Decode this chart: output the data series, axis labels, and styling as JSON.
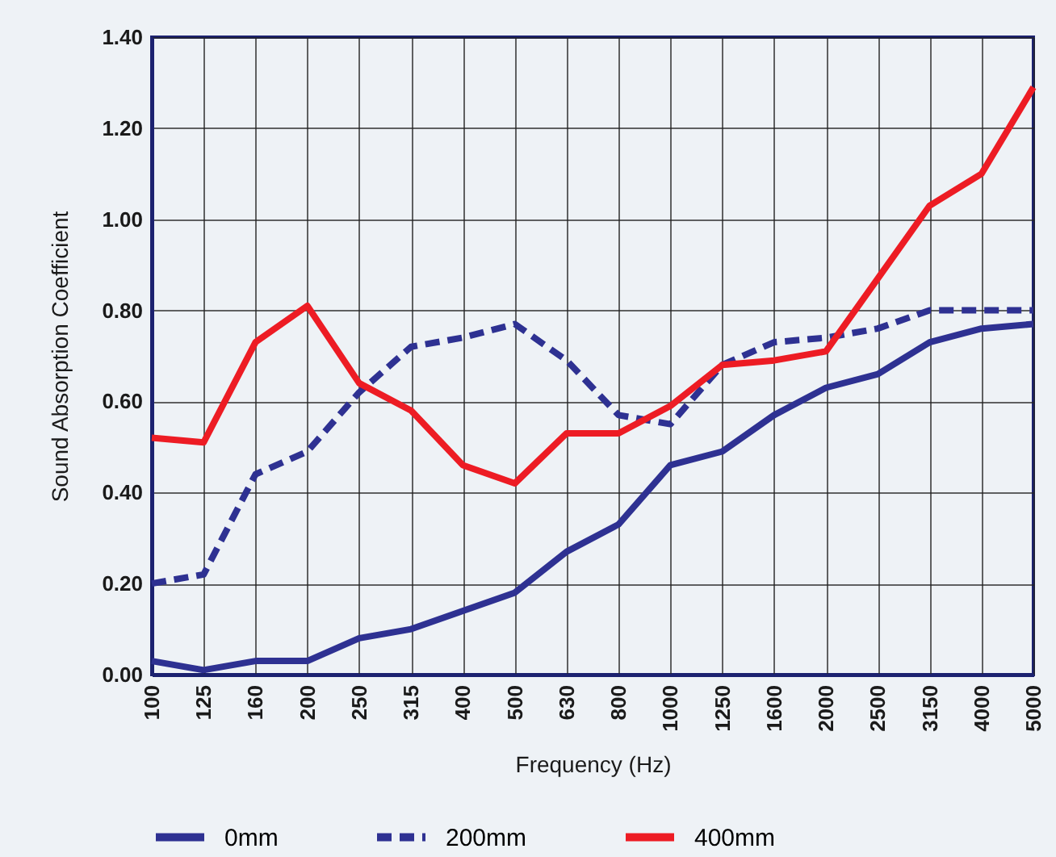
{
  "chart_data": {
    "type": "line",
    "xlabel": "Frequency (Hz)",
    "ylabel": "Sound Absorption Coefficient",
    "categories": [
      "100",
      "125",
      "160",
      "200",
      "250",
      "315",
      "400",
      "500",
      "630",
      "800",
      "1000",
      "1250",
      "1600",
      "2000",
      "2500",
      "3150",
      "4000",
      "5000"
    ],
    "series": [
      {
        "name": "0mm",
        "color": "#2e3192",
        "line_style": "solid",
        "values": [
          0.03,
          0.01,
          0.03,
          0.03,
          0.08,
          0.1,
          0.14,
          0.18,
          0.27,
          0.33,
          0.46,
          0.49,
          0.57,
          0.63,
          0.66,
          0.73,
          0.76,
          0.77
        ]
      },
      {
        "name": "200mm",
        "color": "#2e3192",
        "line_style": "dashed",
        "values": [
          0.2,
          0.22,
          0.44,
          0.49,
          0.62,
          0.72,
          0.74,
          0.77,
          0.69,
          0.57,
          0.55,
          0.68,
          0.73,
          0.74,
          0.76,
          0.8,
          0.8,
          0.8
        ]
      },
      {
        "name": "400mm",
        "color": "#ed1c24",
        "line_style": "solid",
        "values": [
          0.52,
          0.51,
          0.73,
          0.81,
          0.64,
          0.58,
          0.46,
          0.42,
          0.53,
          0.53,
          0.59,
          0.68,
          0.69,
          0.71,
          0.87,
          1.03,
          1.1,
          1.29
        ]
      }
    ],
    "ylim": [
      0,
      1.4
    ],
    "yticks": [
      {
        "value": 0,
        "label": "0.00"
      },
      {
        "value": 0.2,
        "label": "0.20"
      },
      {
        "value": 0.4,
        "label": "0.40"
      },
      {
        "value": 0.6,
        "label": "0.60"
      },
      {
        "value": 0.8,
        "label": "0.80"
      },
      {
        "value": 1.0,
        "label": "1.00"
      },
      {
        "value": 1.2,
        "label": "1.20"
      },
      {
        "value": 1.4,
        "label": "1.40"
      }
    ],
    "grid": true,
    "legend": "bottom"
  }
}
